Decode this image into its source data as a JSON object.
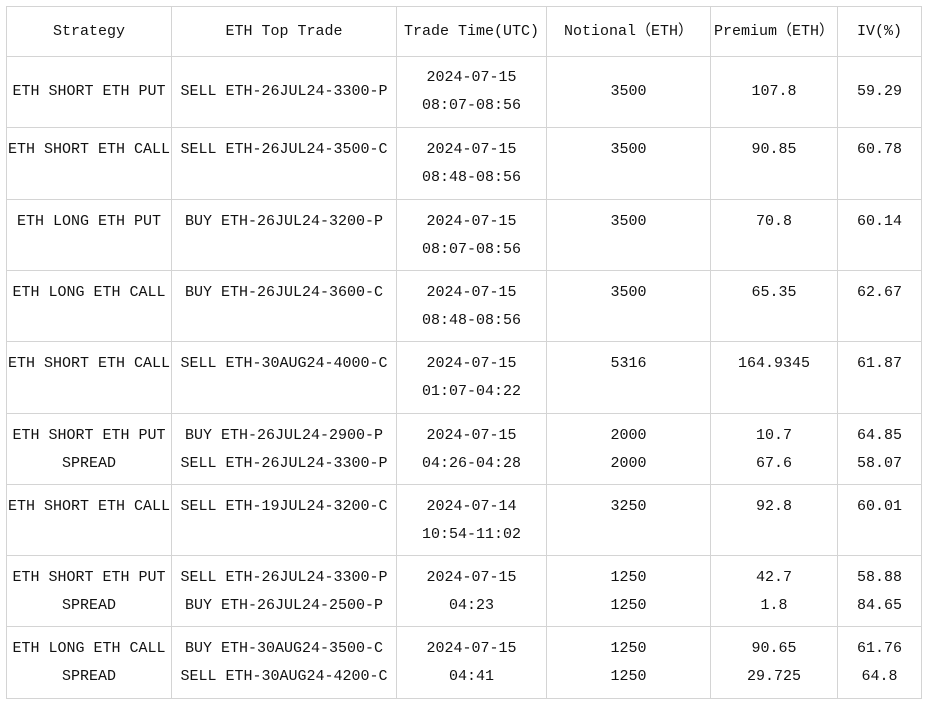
{
  "table": {
    "header": [
      "Strategy",
      "ETH Top Trade",
      "Trade Time(UTC)",
      "Notional（ETH）",
      "Premium（ETH）",
      "IV(%)"
    ],
    "rows": [
      [
        [
          "ETH SHORT ETH PUT"
        ],
        [
          "SELL ETH-26JUL24-3300-P"
        ],
        [
          "2024-07-15",
          "08:07-08:56"
        ],
        [
          "3500"
        ],
        [
          "107.8"
        ],
        [
          "59.29"
        ]
      ],
      [
        [
          "ETH SHORT ETH CALL"
        ],
        [
          "SELL ETH-26JUL24-3500-C"
        ],
        [
          "2024-07-15",
          "08:48-08:56"
        ],
        [
          "3500"
        ],
        [
          "90.85"
        ],
        [
          "60.78"
        ]
      ],
      [
        [
          "ETH LONG ETH PUT"
        ],
        [
          "BUY ETH-26JUL24-3200-P"
        ],
        [
          "2024-07-15",
          "08:07-08:56"
        ],
        [
          "3500"
        ],
        [
          "70.8"
        ],
        [
          "60.14"
        ]
      ],
      [
        [
          "ETH LONG ETH CALL"
        ],
        [
          "BUY ETH-26JUL24-3600-C"
        ],
        [
          "2024-07-15",
          "08:48-08:56"
        ],
        [
          "3500"
        ],
        [
          "65.35"
        ],
        [
          "62.67"
        ]
      ],
      [
        [
          "ETH SHORT ETH CALL"
        ],
        [
          "SELL ETH-30AUG24-4000-C"
        ],
        [
          "2024-07-15",
          "01:07-04:22"
        ],
        [
          "5316"
        ],
        [
          "164.9345"
        ],
        [
          "61.87"
        ]
      ],
      [
        [
          "ETH SHORT ETH PUT",
          "SPREAD"
        ],
        [
          "BUY ETH-26JUL24-2900-P",
          "SELL ETH-26JUL24-3300-P"
        ],
        [
          "2024-07-15",
          "04:26-04:28"
        ],
        [
          "2000",
          "2000"
        ],
        [
          "10.7",
          "67.6"
        ],
        [
          "64.85",
          "58.07"
        ]
      ],
      [
        [
          "ETH SHORT ETH CALL"
        ],
        [
          "SELL ETH-19JUL24-3200-C"
        ],
        [
          "2024-07-14",
          "10:54-11:02"
        ],
        [
          "3250"
        ],
        [
          "92.8"
        ],
        [
          "60.01"
        ]
      ],
      [
        [
          "ETH SHORT ETH PUT",
          "SPREAD"
        ],
        [
          "SELL ETH-26JUL24-3300-P",
          "BUY ETH-26JUL24-2500-P"
        ],
        [
          "2024-07-15",
          "04:23"
        ],
        [
          "1250",
          "1250"
        ],
        [
          "42.7",
          "1.8"
        ],
        [
          "58.88",
          "84.65"
        ]
      ],
      [
        [
          "ETH LONG ETH CALL",
          "SPREAD"
        ],
        [
          "BUY ETH-30AUG24-3500-C",
          "SELL ETH-30AUG24-4200-C"
        ],
        [
          "2024-07-15",
          "04:41"
        ],
        [
          "1250",
          "1250"
        ],
        [
          "90.65",
          "29.725"
        ],
        [
          "61.76",
          "64.8"
        ]
      ]
    ]
  }
}
